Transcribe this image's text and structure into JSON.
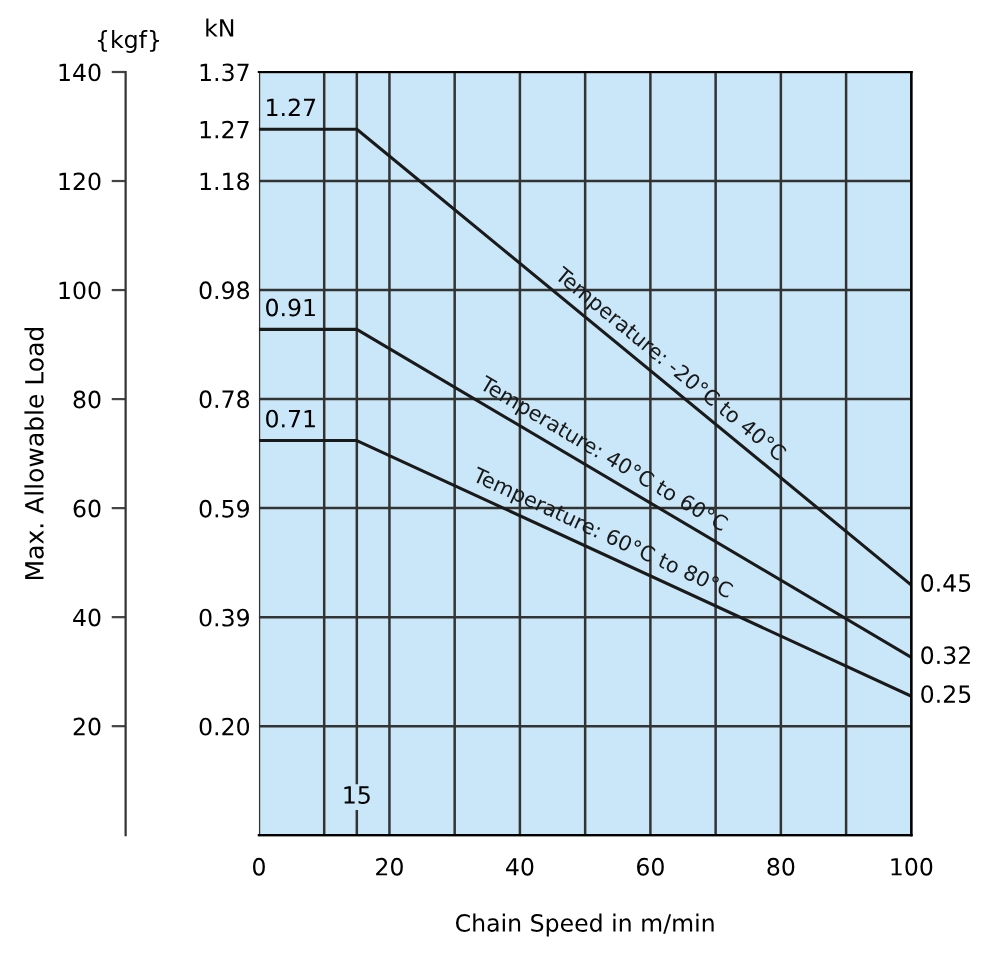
{
  "chart_data": {
    "type": "line",
    "xlabel": "Chain Speed in m/min",
    "ylabel": "Max. Allowable Load",
    "y2label": "kN",
    "x": [
      0,
      15,
      100
    ],
    "series": [
      {
        "name": "Temperature: -20°C to 40°C",
        "color": "#1a1a1a",
        "axis": "y2",
        "values": [
          1.27,
          1.27,
          0.45
        ],
        "value_labels": [
          "1.27",
          null,
          "0.45"
        ]
      },
      {
        "name": "Temperature: 40°C to 60°C",
        "color": "#1a1a1a",
        "axis": "y2",
        "values": [
          0.91,
          0.91,
          0.32
        ],
        "value_labels": [
          "0.91",
          null,
          "0.32"
        ]
      },
      {
        "name": "Temperature: 60°C to 80°C",
        "color": "#1a1a1a",
        "axis": "y2",
        "values": [
          0.71,
          0.71,
          0.25
        ],
        "value_labels": [
          "0.71",
          null,
          "0.25"
        ]
      }
    ],
    "annotations": [
      "{kgf}",
      "15"
    ],
    "xlim": [
      0,
      100
    ],
    "xticks": [
      0,
      {
        "value": 10,
        "label": null
      },
      {
        "value": 15,
        "label": null
      },
      20,
      {
        "value": 30,
        "label": null
      },
      40,
      {
        "value": 50,
        "label": null
      },
      60,
      {
        "value": 70,
        "label": null
      },
      80,
      {
        "value": 90,
        "label": null
      },
      100
    ],
    "ylim": [
      0,
      140
    ],
    "yticks": [
      20,
      40,
      60,
      80,
      100,
      120,
      140
    ],
    "y2lim": [
      0,
      1.373
    ],
    "y2ticks": [
      {
        "value": 0.196,
        "label": "0.20"
      },
      {
        "value": 0.392,
        "label": "0.39"
      },
      {
        "value": 0.588,
        "label": "0.59"
      },
      {
        "value": 0.785,
        "label": "0.78"
      },
      {
        "value": 0.981,
        "label": "0.98"
      },
      {
        "value": 1.177,
        "label": "1.18"
      },
      {
        "value": 1.27,
        "label": "1.27"
      },
      {
        "value": 1.373,
        "label": "1.37"
      }
    ],
    "grid": true,
    "marker": "none",
    "line_style": "solid"
  }
}
